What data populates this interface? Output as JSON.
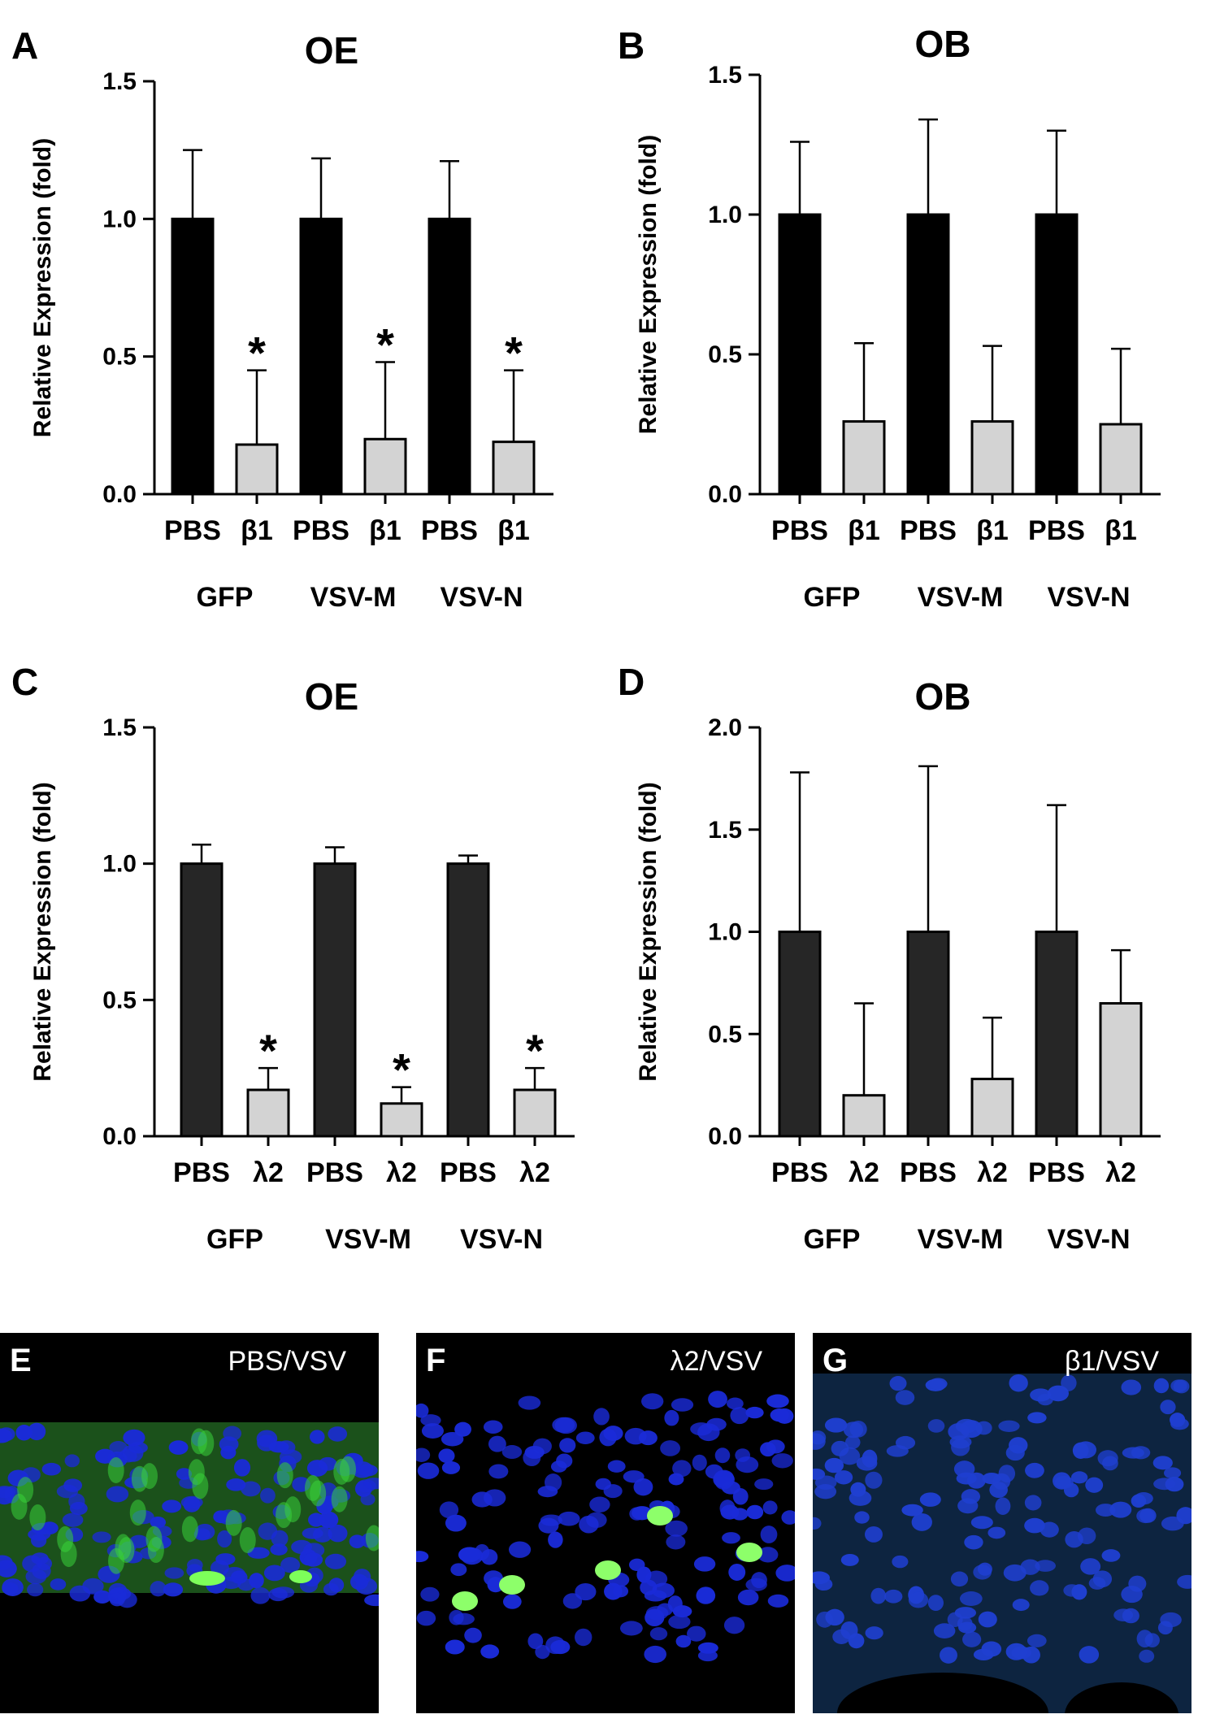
{
  "chart_data": [
    {
      "panel": "A",
      "title": "OE",
      "type": "bar",
      "ylabel": "Relative Expression (fold)",
      "ylim": [
        0,
        1.5
      ],
      "yticks": [
        0.0,
        0.5,
        1.0,
        1.5
      ],
      "ytick_labels": [
        "0.0",
        "0.5",
        "1.0",
        "1.5"
      ],
      "categories": [
        "PBS",
        "β1",
        "PBS",
        "β1",
        "PBS",
        "β1"
      ],
      "groups": [
        "GFP",
        "VSV-M",
        "VSV-N"
      ],
      "values": [
        1.0,
        0.18,
        1.0,
        0.2,
        1.0,
        0.19
      ],
      "errors": [
        0.25,
        0.27,
        0.22,
        0.28,
        0.21,
        0.26
      ],
      "significant": [
        false,
        true,
        false,
        true,
        false,
        true
      ],
      "sig_marker": "*"
    },
    {
      "panel": "B",
      "title": "OB",
      "type": "bar",
      "ylabel": "Relative Expression (fold)",
      "ylim": [
        0,
        1.5
      ],
      "yticks": [
        0.0,
        0.5,
        1.0,
        1.5
      ],
      "ytick_labels": [
        "0.0",
        "0.5",
        "1.0",
        "1.5"
      ],
      "categories": [
        "PBS",
        "β1",
        "PBS",
        "β1",
        "PBS",
        "β1"
      ],
      "groups": [
        "GFP",
        "VSV-M",
        "VSV-N"
      ],
      "values": [
        1.0,
        0.26,
        1.0,
        0.26,
        1.0,
        0.25
      ],
      "errors": [
        0.26,
        0.28,
        0.34,
        0.27,
        0.3,
        0.27
      ],
      "significant": [
        false,
        false,
        false,
        false,
        false,
        false
      ],
      "sig_marker": "*"
    },
    {
      "panel": "C",
      "title": "OE",
      "type": "bar",
      "ylabel": "Relative Expression (fold)",
      "ylim": [
        0,
        1.5
      ],
      "yticks": [
        0.0,
        0.5,
        1.0,
        1.5
      ],
      "ytick_labels": [
        "0.0",
        "0.5",
        "1.0",
        "1.5"
      ],
      "categories": [
        "PBS",
        "λ2",
        "PBS",
        "λ2",
        "PBS",
        "λ2"
      ],
      "groups": [
        "GFP",
        "VSV-M",
        "VSV-N"
      ],
      "values": [
        1.0,
        0.17,
        1.0,
        0.12,
        1.0,
        0.17
      ],
      "errors": [
        0.07,
        0.08,
        0.06,
        0.06,
        0.03,
        0.08
      ],
      "significant": [
        false,
        true,
        false,
        true,
        false,
        true
      ],
      "sig_marker": "*"
    },
    {
      "panel": "D",
      "title": "OB",
      "type": "bar",
      "ylabel": "Relative Expression (fold)",
      "ylim": [
        0,
        2.0
      ],
      "yticks": [
        0.0,
        0.5,
        1.0,
        1.5,
        2.0
      ],
      "ytick_labels": [
        "0.0",
        "0.5",
        "1.0",
        "1.5",
        "2.0"
      ],
      "categories": [
        "PBS",
        "λ2",
        "PBS",
        "λ2",
        "PBS",
        "λ2"
      ],
      "groups": [
        "GFP",
        "VSV-M",
        "VSV-N"
      ],
      "values": [
        1.0,
        0.2,
        1.0,
        0.28,
        1.0,
        0.65
      ],
      "errors": [
        0.78,
        0.45,
        0.81,
        0.3,
        0.62,
        0.26
      ],
      "significant": [
        false,
        false,
        false,
        false,
        false,
        false
      ],
      "sig_marker": "*"
    }
  ],
  "micrographs": [
    {
      "letter": "E",
      "label": "PBS/VSV"
    },
    {
      "letter": "F",
      "label": "λ2/VSV"
    },
    {
      "letter": "G",
      "label": "β1/VSV"
    }
  ],
  "colors": {
    "pbs_bar_1": "#000000",
    "pbs_bar_2": "#262626",
    "treatment_bar": "#d3d3d3",
    "nuclei": "#1a2bd8",
    "gfp": "#39d13a",
    "background": "#000000"
  }
}
